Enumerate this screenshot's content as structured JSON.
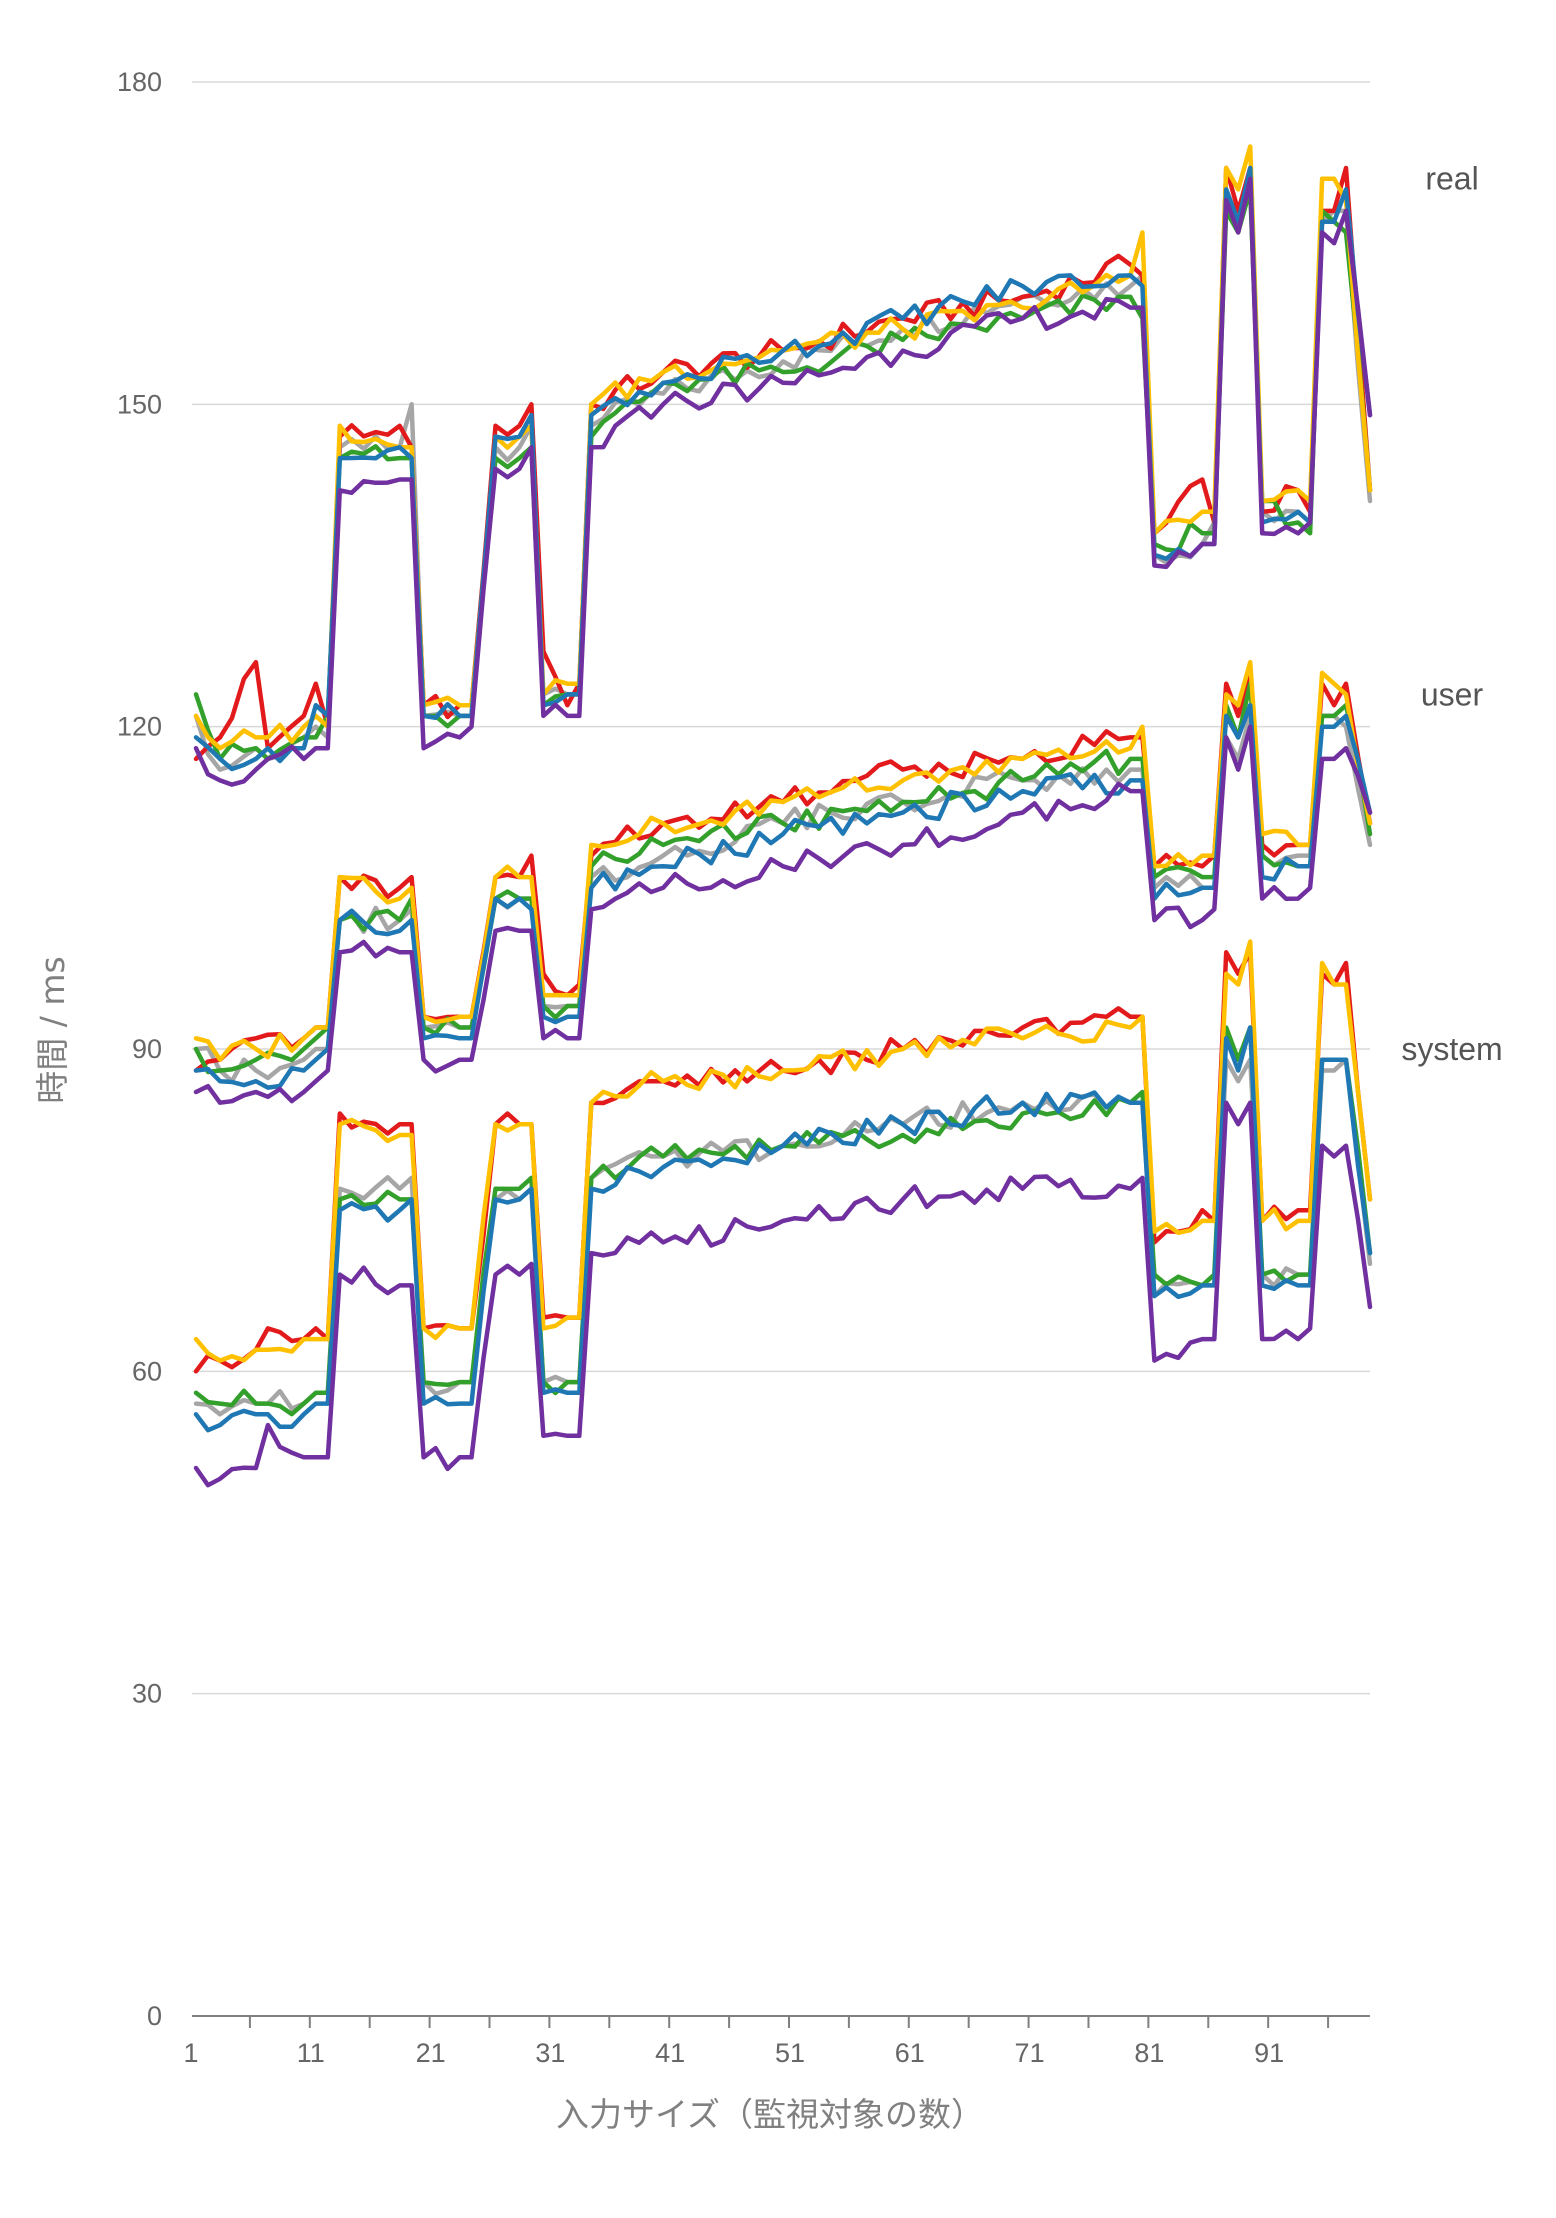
{
  "chart_data": {
    "type": "line",
    "title": "",
    "xlabel": "入力サイズ（監視対象の数）",
    "ylabel": "時間 / ms",
    "ylim": [
      0,
      180
    ],
    "yticks": [
      0,
      30,
      60,
      90,
      120,
      150,
      180
    ],
    "xlim": [
      1,
      99
    ],
    "xticks": [
      1,
      11,
      21,
      31,
      41,
      51,
      61,
      71,
      81,
      91
    ],
    "grid": true,
    "legend": "none",
    "group_labels": [
      {
        "text": "real",
        "y": 171
      },
      {
        "text": "user",
        "y": 123
      },
      {
        "text": "system",
        "y": 90
      }
    ],
    "keypoints": {
      "real": {
        "x": [
          1,
          3,
          6,
          7,
          10,
          11,
          12,
          13,
          18,
          19,
          20,
          23,
          24,
          26,
          28,
          29,
          30,
          32,
          33,
          34,
          40,
          50,
          60,
          70,
          79,
          80,
          81,
          85,
          86,
          87,
          88,
          89,
          90,
          93,
          94,
          95,
          96,
          97,
          99
        ],
        "series": [
          {
            "color": "#a6a6a6",
            "values": [
              121,
              116,
              118,
              117,
              119,
              120,
              119,
              146,
              146,
              150,
              121,
              121,
              121,
              146,
              146,
              148,
              123,
              123,
              123,
              148,
              151,
              154,
              157,
              160,
              161,
              162,
              136,
              137,
              139,
              170,
              167,
              170,
              140,
              140,
              139,
              167,
              168,
              168,
              141
            ]
          },
          {
            "color": "#e31a1c",
            "values": [
              117,
              119,
              126,
              118,
              121,
              124,
              120,
              147,
              148,
              146,
              122,
              122,
              122,
              148,
              148,
              150,
              127,
              122,
              124,
              150,
              153,
              155,
              158,
              160,
              163,
              162,
              138,
              143,
              139,
              172,
              168,
              172,
              140,
              142,
              140,
              168,
              168,
              172,
              142
            ]
          },
          {
            "color": "#33a02c",
            "values": [
              123,
              117,
              118,
              117,
              119,
              119,
              121,
              145,
              145,
              145,
              121,
              121,
              121,
              145,
              145,
              146,
              122,
              123,
              123,
              147,
              152,
              153,
              156,
              158,
              160,
              158,
              137,
              138,
              138,
              168,
              166,
              170,
              141,
              139,
              138,
              168,
              167,
              166,
              142
            ]
          },
          {
            "color": "#ffc000",
            "values": [
              121,
              118,
              119,
              119,
              120,
              121,
              120,
              148,
              146,
              146,
              122,
              122,
              122,
              147,
              147,
              148,
              123,
              124,
              124,
              150,
              153,
              155,
              157,
              159,
              162,
              166,
              138,
              140,
              140,
              172,
              170,
              174,
              141,
              142,
              141,
              171,
              171,
              169,
              142
            ]
          },
          {
            "color": "#1f78b4",
            "values": [
              119,
              117,
              117,
              118,
              118,
              122,
              121,
              145,
              146,
              145,
              121,
              121,
              121,
              147,
              147,
              149,
              122,
              123,
              123,
              149,
              152,
              155,
              158,
              161,
              162,
              161,
              136,
              137,
              137,
              170,
              167,
              172,
              139,
              140,
              139,
              167,
              167,
              170,
              149
            ]
          },
          {
            "color": "#7030a0",
            "values": [
              118,
              115,
              116,
              117,
              117,
              118,
              118,
              142,
              143,
              143,
              118,
              119,
              120,
              144,
              144,
              146,
              121,
              121,
              121,
              146,
              150,
              152,
              155,
              158,
              159,
              159,
              135,
              137,
              137,
              169,
              166,
              171,
              138,
              138,
              139,
              166,
              165,
              168,
              149
            ]
          }
        ]
      },
      "user": {
        "x": [
          1,
          3,
          6,
          10,
          11,
          12,
          13,
          18,
          19,
          20,
          23,
          24,
          26,
          28,
          29,
          30,
          32,
          33,
          34,
          40,
          50,
          60,
          70,
          79,
          80,
          81,
          85,
          86,
          87,
          88,
          89,
          90,
          93,
          94,
          95,
          96,
          97,
          99
        ],
        "series": [
          {
            "color": "#a6a6a6",
            "values": [
              90,
              88,
              88,
              89,
              90,
              90,
              102,
              102,
              103,
              92,
              92,
              92,
              104,
              104,
              104,
              94,
              94,
              94,
              106,
              108,
              111,
              113,
              115,
              116,
              116,
              105,
              105,
              105,
              119,
              117,
              121,
              108,
              108,
              108,
              121,
              121,
              120,
              109
            ]
          },
          {
            "color": "#e31a1c",
            "values": [
              88,
              89,
              91,
              91,
              92,
              92,
              106,
              105,
              106,
              93,
              93,
              93,
              106,
              106,
              108,
              97,
              95,
              96,
              108,
              111,
              113,
              116,
              117,
              119,
              119,
              107,
              107,
              108,
              124,
              121,
              125,
              109,
              109,
              109,
              124,
              122,
              124,
              111
            ]
          },
          {
            "color": "#33a02c",
            "values": [
              90,
              88,
              89,
              90,
              91,
              92,
              102,
              102,
              104,
              92,
              92,
              92,
              104,
              104,
              104,
              94,
              94,
              94,
              107,
              109,
              111,
              113,
              115,
              117,
              117,
              106,
              106,
              106,
              122,
              119,
              124,
              108,
              107,
              107,
              121,
              121,
              122,
              110
            ]
          },
          {
            "color": "#ffc000",
            "values": [
              91,
              89,
              90,
              91,
              92,
              92,
              106,
              104,
              105,
              93,
              93,
              93,
              106,
              106,
              106,
              95,
              95,
              95,
              109,
              111,
              113,
              115,
              117,
              118,
              120,
              107,
              108,
              108,
              123,
              122,
              126,
              110,
              109,
              109,
              125,
              124,
              123,
              111
            ]
          },
          {
            "color": "#1f78b4",
            "values": [
              88,
              87,
              87,
              88,
              89,
              90,
              102,
              101,
              102,
              91,
              91,
              91,
              104,
              104,
              103,
              93,
              93,
              93,
              105,
              107,
              110,
              112,
              114,
              115,
              115,
              104,
              105,
              105,
              121,
              119,
              122,
              106,
              107,
              107,
              120,
              120,
              121,
              112
            ]
          },
          {
            "color": "#7030a0",
            "values": [
              86,
              85,
              86,
              86,
              87,
              88,
              99,
              99,
              99,
              89,
              89,
              89,
              101,
              101,
              101,
              91,
              91,
              91,
              103,
              105,
              107,
              109,
              112,
              114,
              114,
              102,
              102,
              103,
              119,
              116,
              120,
              104,
              104,
              105,
              117,
              117,
              118,
              112
            ]
          }
        ]
      },
      "system": {
        "x": [
          1,
          3,
          6,
          7,
          10,
          11,
          12,
          13,
          18,
          19,
          20,
          23,
          24,
          26,
          28,
          29,
          30,
          32,
          33,
          34,
          40,
          50,
          60,
          70,
          79,
          80,
          81,
          85,
          86,
          87,
          88,
          89,
          90,
          93,
          94,
          95,
          96,
          97,
          99
        ],
        "series": [
          {
            "color": "#a6a6a6",
            "values": [
              57,
              56,
              57,
              57,
              57,
              58,
              58,
              77,
              77,
              78,
              59,
              59,
              59,
              76,
              76,
              77,
              59,
              59,
              59,
              78,
              80,
              81,
              83,
              85,
              85,
              85,
              67,
              68,
              68,
              89,
              87,
              89,
              69,
              69,
              69,
              88,
              88,
              89,
              70
            ]
          },
          {
            "color": "#e31a1c",
            "values": [
              60,
              61,
              62,
              64,
              63,
              64,
              63,
              84,
              83,
              83,
              64,
              64,
              64,
              83,
              83,
              83,
              65,
              65,
              65,
              85,
              87,
              88,
              90,
              92,
              93,
              93,
              72,
              75,
              74,
              99,
              97,
              99,
              74,
              75,
              75,
              97,
              96,
              98,
              76
            ]
          },
          {
            "color": "#33a02c",
            "values": [
              58,
              57,
              57,
              57,
              57,
              58,
              58,
              76,
              76,
              76,
              59,
              59,
              59,
              77,
              77,
              78,
              59,
              59,
              59,
              78,
              80,
              81,
              82,
              84,
              85,
              86,
              69,
              68,
              69,
              92,
              89,
              92,
              69,
              69,
              69,
              89,
              89,
              89,
              71
            ]
          },
          {
            "color": "#ffc000",
            "values": [
              63,
              61,
              62,
              62,
              63,
              63,
              63,
              83,
              82,
              82,
              64,
              64,
              64,
              83,
              83,
              83,
              64,
              65,
              65,
              85,
              87,
              88,
              90,
              91,
              92,
              93,
              73,
              74,
              74,
              97,
              96,
              100,
              74,
              74,
              74,
              98,
              96,
              96,
              76
            ]
          },
          {
            "color": "#1f78b4",
            "values": [
              56,
              55,
              56,
              56,
              56,
              57,
              57,
              75,
              75,
              76,
              57,
              57,
              57,
              76,
              76,
              77,
              58,
              58,
              58,
              77,
              79,
              81,
              83,
              85,
              85,
              85,
              67,
              68,
              68,
              91,
              88,
              92,
              68,
              68,
              68,
              89,
              89,
              89,
              71
            ]
          },
          {
            "color": "#7030a0",
            "values": [
              51,
              50,
              51,
              55,
              52,
              52,
              52,
              69,
              68,
              68,
              52,
              52,
              52,
              69,
              69,
              70,
              54,
              54,
              54,
              71,
              72,
              74,
              76,
              77,
              77,
              78,
              61,
              63,
              63,
              85,
              83,
              85,
              63,
              63,
              64,
              81,
              80,
              81,
              66
            ]
          }
        ]
      }
    }
  }
}
